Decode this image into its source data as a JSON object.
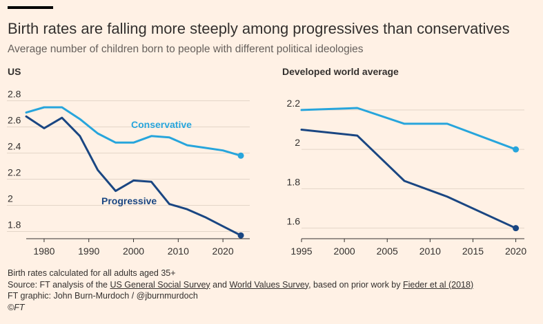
{
  "header": {
    "title": "Birth rates are falling more steeply among progressives than conservatives",
    "subtitle": "Average number of children born to people with different political ideologies"
  },
  "colors": {
    "conservative": "#27a5dc",
    "progressive": "#1a4682",
    "background": "#fff1e5",
    "grid": "#e3d5c8",
    "text": "#33302e"
  },
  "chart_data": [
    {
      "type": "line",
      "title": "US",
      "xlim": [
        1976,
        2026
      ],
      "ylim": [
        1.75,
        2.85
      ],
      "x_ticks": [
        1980,
        1990,
        2000,
        2010,
        2020
      ],
      "y_ticks": [
        1.8,
        2.0,
        2.2,
        2.4,
        2.6,
        2.8
      ],
      "y_tick_labels": [
        "1.8",
        "2",
        "2.2",
        "2.4",
        "2.6",
        "2.8"
      ],
      "grid": true,
      "series": [
        {
          "name": "Conservative",
          "color": "#27a5dc",
          "x": [
            1976,
            1980,
            1984,
            1988,
            1992,
            1996,
            2000,
            2004,
            2008,
            2012,
            2016,
            2020,
            2024
          ],
          "y": [
            2.71,
            2.75,
            2.75,
            2.66,
            2.55,
            2.48,
            2.48,
            2.53,
            2.52,
            2.46,
            2.44,
            2.42,
            2.38
          ]
        },
        {
          "name": "Progressive",
          "color": "#1a4682",
          "x": [
            1976,
            1980,
            1984,
            1988,
            1992,
            1996,
            2000,
            2004,
            2008,
            2012,
            2016,
            2020,
            2024
          ],
          "y": [
            2.68,
            2.59,
            2.67,
            2.53,
            2.27,
            2.11,
            2.19,
            2.18,
            2.01,
            1.97,
            1.91,
            1.84,
            1.77
          ]
        }
      ]
    },
    {
      "type": "line",
      "title": "Developed world average",
      "xlim": [
        1995,
        2021
      ],
      "ylim": [
        1.55,
        2.28
      ],
      "x_ticks": [
        1995,
        2000,
        2005,
        2010,
        2015,
        2020
      ],
      "y_ticks": [
        1.6,
        1.8,
        2.0,
        2.2
      ],
      "y_tick_labels": [
        "1.6",
        "1.8",
        "2",
        "2.2"
      ],
      "grid": true,
      "series": [
        {
          "name": "Conservative",
          "color": "#27a5dc",
          "x": [
            1995,
            2001.5,
            2007,
            2012,
            2020
          ],
          "y": [
            2.2,
            2.21,
            2.13,
            2.13,
            2.0
          ]
        },
        {
          "name": "Progressive",
          "color": "#1a4682",
          "x": [
            1995,
            2001.5,
            2007,
            2012,
            2020
          ],
          "y": [
            2.1,
            2.07,
            1.84,
            1.76,
            1.6
          ]
        }
      ]
    }
  ],
  "footer": {
    "note": "Birth rates calculated for all adults aged 35+",
    "source_prefix": "Source: FT analysis of the ",
    "source_link1": "US General Social Survey",
    "source_and": " and ",
    "source_link2": "World Values Survey",
    "source_mid": ", based on prior work by ",
    "source_link3": "Fieder et al (2018)",
    "credit": "FT graphic: John Burn-Murdoch / @jburnmurdoch",
    "copyright": "©FT"
  }
}
